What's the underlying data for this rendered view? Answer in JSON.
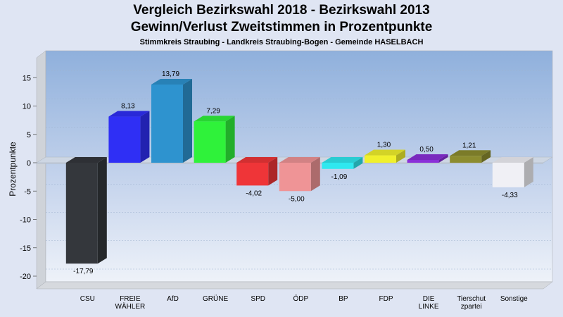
{
  "header": {
    "title_line1": "Vergleich Bezirkswahl 2018 - Bezirkswahl 2013",
    "title_line2": "Gewinn/Verlust Zweitstimmen in Prozentpunkte",
    "subtitle": "Stimmkreis Straubing - Landkreis Straubing-Bogen - Gemeinde HASELBACH"
  },
  "chart_data": {
    "type": "bar",
    "title": "Vergleich Bezirkswahl 2018 - Bezirkswahl 2013",
    "subtitle": "Gewinn/Verlust Zweitstimmen in Prozentpunkte",
    "ylabel": "Prozentpunkte",
    "xlabel": "",
    "ylim": [
      -22,
      19
    ],
    "yticks": [
      15,
      10,
      5,
      0,
      -5,
      -10,
      -15,
      -20
    ],
    "grid": true,
    "categories": [
      [
        "CSU"
      ],
      [
        "FREIE",
        "WÄHLER"
      ],
      [
        "AfD"
      ],
      [
        "GRÜNE"
      ],
      [
        "SPD"
      ],
      [
        "ÖDP"
      ],
      [
        "BP"
      ],
      [
        "FDP"
      ],
      [
        "DIE",
        "LINKE"
      ],
      [
        "Tierschut",
        "zpartei"
      ],
      [
        "Sonstige"
      ]
    ],
    "values": [
      -17.79,
      8.13,
      13.79,
      7.29,
      -4.02,
      -5.0,
      -1.09,
      1.3,
      0.5,
      1.21,
      -4.33
    ],
    "value_labels": [
      "-17,79",
      "8,13",
      "13,79",
      "7,29",
      "-4,02",
      "-5,00",
      "-1,09",
      "1,30",
      "0,50",
      "1,21",
      "-4,33"
    ],
    "colors": [
      "#34373c",
      "#2f2ff5",
      "#2e93cf",
      "#2ff23a",
      "#ef3538",
      "#ef9496",
      "#2fe8ef",
      "#f0f02c",
      "#8a2fd8",
      "#8c8c2f",
      "#f0f0f5"
    ]
  }
}
